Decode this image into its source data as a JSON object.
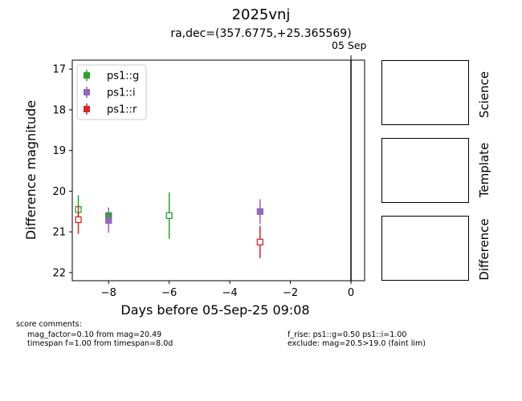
{
  "title": "2025vnj",
  "subtitle": "ra,dec=(357.6775,+25.365569)",
  "marker_label": "05 Sep",
  "chart_data": {
    "type": "scatter",
    "xlabel": "Days before 05-Sep-25 09:08",
    "ylabel": "Difference magnitude",
    "xlim": [
      -9.2,
      0.45
    ],
    "ylim": [
      22.2,
      16.78
    ],
    "y_inverted": true,
    "x_ticks": [
      -8,
      -6,
      -4,
      -2,
      0
    ],
    "y_ticks": [
      17,
      18,
      19,
      20,
      21,
      22
    ],
    "grid": false,
    "legend_position": "upper-left",
    "vertical_line_x": 0,
    "series": [
      {
        "name": "ps1::g",
        "color": "#2ca02c",
        "points": [
          {
            "x": -9.0,
            "y": 20.45,
            "err": 0.35,
            "filled": false
          },
          {
            "x": -8.0,
            "y": 20.6,
            "err": 0.2,
            "filled": true
          },
          {
            "x": -6.0,
            "y": 20.6,
            "err": 0.57,
            "filled": false
          }
        ]
      },
      {
        "name": "ps1::i",
        "color": "#9467bd",
        "points": [
          {
            "x": -8.0,
            "y": 20.72,
            "err": 0.3,
            "filled": true
          },
          {
            "x": -3.0,
            "y": 20.5,
            "err": 0.3,
            "filled": true
          }
        ]
      },
      {
        "name": "ps1::r",
        "color": "#d62728",
        "points": [
          {
            "x": -9.0,
            "y": 20.7,
            "err": 0.35,
            "filled": false
          },
          {
            "x": -3.0,
            "y": 21.25,
            "err": 0.4,
            "filled": false
          }
        ]
      }
    ]
  },
  "panels": [
    {
      "label": "Science"
    },
    {
      "label": "Template"
    },
    {
      "label": "Difference"
    }
  ],
  "comments": {
    "header": "score comments:",
    "left": [
      "mag_factor=0.10 from mag=20.49",
      "timespan f=1.00 from timespan=8.0d"
    ],
    "right": [
      "f_rise: ps1::g=0.50 ps1::i=1.00",
      "exclude: mag=20.5>19.0 (faint lim)"
    ]
  }
}
